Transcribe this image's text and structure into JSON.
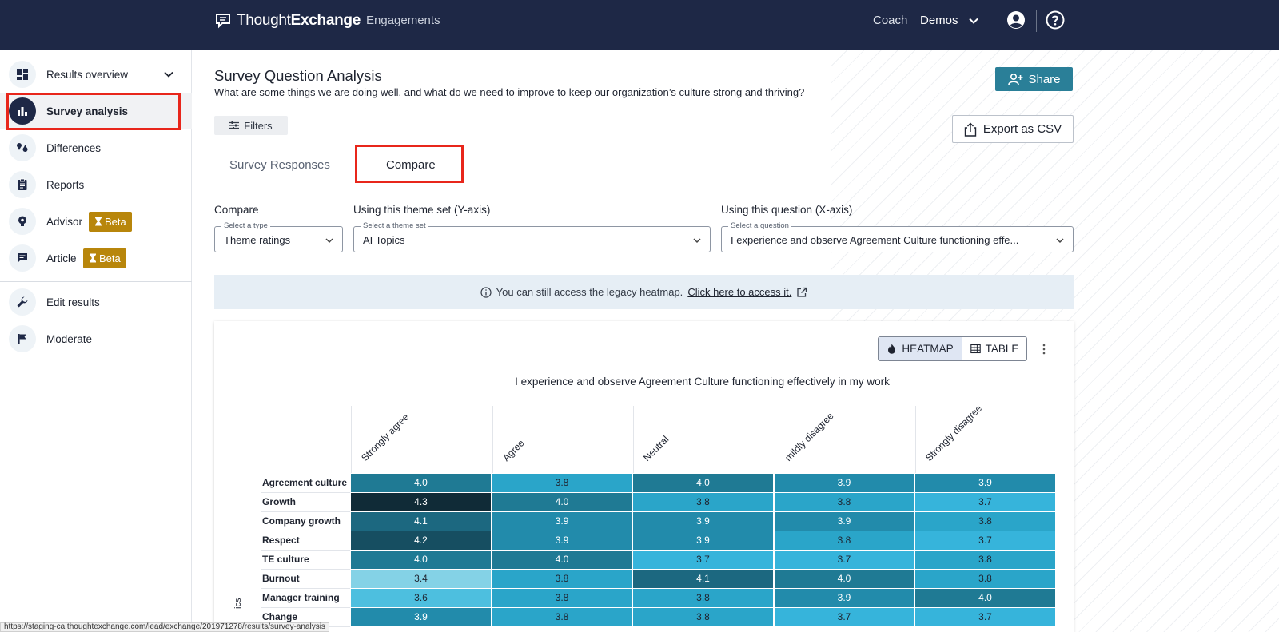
{
  "topbar": {
    "brand_light": "Thought",
    "brand_bold": "Exchange",
    "engagements": "Engagements",
    "coach": "Coach",
    "demos": "Demos"
  },
  "sidebar": {
    "items": [
      {
        "label": "Results overview",
        "icon": "dashboard-icon"
      },
      {
        "label": "Survey analysis",
        "icon": "bar-chart-icon",
        "active": true
      },
      {
        "label": "Differences",
        "icon": "quote-icon"
      },
      {
        "label": "Reports",
        "icon": "clipboard-icon"
      },
      {
        "label": "Advisor",
        "icon": "lightbulb-icon",
        "badge": "Beta"
      },
      {
        "label": "Article",
        "icon": "chat-icon",
        "badge": "Beta"
      },
      {
        "label": "Edit results",
        "icon": "wrench-icon"
      },
      {
        "label": "Moderate",
        "icon": "flag-icon"
      }
    ]
  },
  "header": {
    "title": "Survey Question Analysis",
    "subtitle": "What are some things we are doing well, and what do we need to improve to keep our organization’s culture strong and thriving?",
    "share_label": "Share",
    "filters_label": "Filters",
    "export_label": "Export as CSV"
  },
  "tabs": [
    {
      "label": "Survey Responses",
      "active": false
    },
    {
      "label": "Compare",
      "active": true
    }
  ],
  "compare_form": {
    "compare_label": "Compare",
    "type_legend": "Select a type",
    "type_value": "Theme ratings",
    "theme_label": "Using this theme set (Y-axis)",
    "theme_legend": "Select a theme set",
    "theme_value": "AI Topics",
    "question_label": "Using this question (X-axis)",
    "question_legend": "Select a question",
    "question_value": "I experience and observe Agreement Culture functioning effe..."
  },
  "banner": {
    "text": "You can still access the legacy heatmap.",
    "link": "Click here to access it."
  },
  "view_toggle": {
    "heatmap": "HEATMAP",
    "table": "TABLE"
  },
  "y_axis_partial": "ics",
  "status_url": "https://staging-ca.thoughtexchange.com/lead/exchange/201971278/results/survey-analysis",
  "colors": {
    "navy": "#1e2846",
    "teal_button": "#2a7f98",
    "highlight_red": "#e8261b",
    "beta_gold": "#b8860b"
  },
  "chart_data": {
    "type": "heatmap",
    "title": "I experience and observe Agreement Culture functioning effectively in my work",
    "columns": [
      "Strongly agree",
      "Agree",
      "Neutral",
      "mildly disagree",
      "Strongly disagree"
    ],
    "rows": [
      "Agreement culture",
      "Growth",
      "Company growth",
      "Respect",
      "TE culture",
      "Burnout",
      "Manager training",
      "Change"
    ],
    "values": [
      [
        4.0,
        3.8,
        4.0,
        3.9,
        3.9
      ],
      [
        4.3,
        4.0,
        3.8,
        3.8,
        3.7
      ],
      [
        4.1,
        3.9,
        3.9,
        3.9,
        3.8
      ],
      [
        4.2,
        3.9,
        3.9,
        3.8,
        3.7
      ],
      [
        4.0,
        4.0,
        3.7,
        3.7,
        3.8
      ],
      [
        3.4,
        3.8,
        4.1,
        4.0,
        3.8
      ],
      [
        3.6,
        3.8,
        3.8,
        3.9,
        4.0
      ],
      [
        3.9,
        3.8,
        3.8,
        3.7,
        3.7
      ]
    ]
  }
}
